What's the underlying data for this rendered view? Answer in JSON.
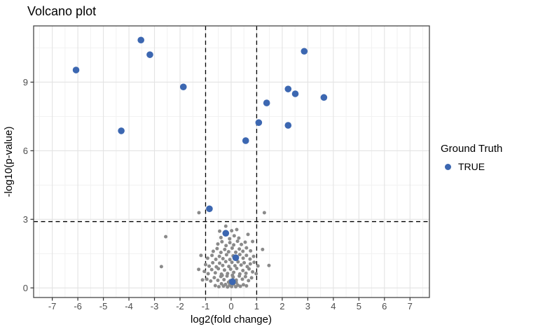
{
  "chart_data": {
    "type": "scatter",
    "title": "Volcano plot",
    "xlabel": "log2(fold change)",
    "ylabel": "-log10(p-value)",
    "xlim": [
      -7.73,
      7.76
    ],
    "ylim": [
      -0.42,
      11.46
    ],
    "x_ticks": [
      -7,
      -6,
      -5,
      -4,
      -3,
      -2,
      -1,
      0,
      1,
      2,
      3,
      4,
      5,
      6,
      7
    ],
    "y_ticks": [
      0,
      3,
      6,
      9
    ],
    "x_minor_ticks": [
      -7.5,
      -6.5,
      -5.5,
      -4.5,
      -3.5,
      -2.5,
      -1.5,
      -0.5,
      0.5,
      1.5,
      2.5,
      3.5,
      4.5,
      5.5,
      6.5,
      7.5
    ],
    "y_minor_ticks": [
      1.5,
      4.5,
      7.5,
      10.5
    ],
    "grid": {
      "major": true,
      "minor": true
    },
    "legend": {
      "position": "right",
      "title": "Ground Truth",
      "items": [
        {
          "label": "TRUE",
          "color": "#3c67b1"
        }
      ]
    },
    "thresholds": {
      "style": "dashed",
      "color": "#000000",
      "vertical_x": [
        -1,
        1
      ],
      "horizontal_y": 2.9
    },
    "series": [
      {
        "name": "background",
        "color": "#8a8a8a",
        "point_radius": 2.5,
        "points": [
          [
            -0.62,
            0.1
          ],
          [
            -0.48,
            0.05
          ],
          [
            -0.38,
            0.18
          ],
          [
            -0.3,
            0.08
          ],
          [
            -0.22,
            0.15
          ],
          [
            -0.14,
            0.04
          ],
          [
            -0.06,
            0.12
          ],
          [
            0.02,
            0.06
          ],
          [
            0.1,
            0.16
          ],
          [
            0.18,
            0.05
          ],
          [
            0.26,
            0.12
          ],
          [
            0.36,
            0.07
          ],
          [
            0.48,
            0.14
          ],
          [
            0.6,
            0.09
          ],
          [
            0.2,
            0.24
          ],
          [
            -0.1,
            0.25
          ],
          [
            -0.95,
            0.38
          ],
          [
            -0.8,
            0.3
          ],
          [
            -0.66,
            0.45
          ],
          [
            -0.52,
            0.33
          ],
          [
            -0.4,
            0.5
          ],
          [
            -0.28,
            0.36
          ],
          [
            -0.16,
            0.52
          ],
          [
            -0.04,
            0.31
          ],
          [
            0.08,
            0.47
          ],
          [
            0.2,
            0.34
          ],
          [
            0.32,
            0.52
          ],
          [
            0.44,
            0.38
          ],
          [
            0.56,
            0.49
          ],
          [
            0.68,
            0.32
          ],
          [
            0.8,
            0.44
          ],
          [
            -1.12,
            0.35
          ],
          [
            0.05,
            0.55
          ],
          [
            -0.35,
            0.55
          ],
          [
            -1.05,
            0.72
          ],
          [
            -0.9,
            0.62
          ],
          [
            -0.76,
            0.8
          ],
          [
            -0.62,
            0.66
          ],
          [
            -0.5,
            0.84
          ],
          [
            -0.38,
            0.6
          ],
          [
            -0.26,
            0.78
          ],
          [
            -0.14,
            0.63
          ],
          [
            -0.02,
            0.82
          ],
          [
            0.1,
            0.68
          ],
          [
            0.22,
            0.85
          ],
          [
            0.34,
            0.61
          ],
          [
            0.46,
            0.76
          ],
          [
            0.58,
            0.64
          ],
          [
            0.7,
            0.83
          ],
          [
            0.84,
            0.7
          ],
          [
            0.98,
            0.62
          ],
          [
            -1.27,
            0.81
          ],
          [
            -1.0,
            1.02
          ],
          [
            -0.86,
            0.95
          ],
          [
            -0.72,
            1.1
          ],
          [
            -0.58,
            0.92
          ],
          [
            -0.45,
            1.08
          ],
          [
            -0.33,
            0.98
          ],
          [
            -0.21,
            1.15
          ],
          [
            -0.09,
            0.94
          ],
          [
            0.03,
            1.12
          ],
          [
            0.15,
            0.97
          ],
          [
            0.27,
            1.14
          ],
          [
            0.39,
            1.0
          ],
          [
            0.51,
            1.1
          ],
          [
            0.63,
            0.93
          ],
          [
            0.75,
            1.05
          ],
          [
            0.9,
            1.12
          ],
          [
            1.05,
            0.96
          ],
          [
            -0.92,
            1.3
          ],
          [
            -0.75,
            1.42
          ],
          [
            -0.6,
            1.25
          ],
          [
            -0.46,
            1.38
          ],
          [
            -0.32,
            1.28
          ],
          [
            -0.18,
            1.45
          ],
          [
            -0.05,
            1.24
          ],
          [
            0.08,
            1.4
          ],
          [
            0.21,
            1.27
          ],
          [
            0.34,
            1.46
          ],
          [
            0.47,
            1.3
          ],
          [
            0.6,
            1.42
          ],
          [
            0.74,
            1.26
          ],
          [
            0.88,
            1.38
          ],
          [
            -1.18,
            1.42
          ],
          [
            -0.7,
            1.6
          ],
          [
            -0.55,
            1.72
          ],
          [
            -0.4,
            1.55
          ],
          [
            -0.25,
            1.68
          ],
          [
            -0.1,
            1.58
          ],
          [
            0.04,
            1.74
          ],
          [
            0.18,
            1.56
          ],
          [
            0.32,
            1.7
          ],
          [
            0.46,
            1.6
          ],
          [
            0.6,
            1.75
          ],
          [
            0.76,
            1.62
          ],
          [
            1.23,
            1.68
          ],
          [
            -0.52,
            1.92
          ],
          [
            -0.36,
            2.02
          ],
          [
            -0.2,
            1.85
          ],
          [
            -0.05,
            1.98
          ],
          [
            0.1,
            1.88
          ],
          [
            0.25,
            2.04
          ],
          [
            0.4,
            1.9
          ],
          [
            0.55,
            2.0
          ],
          [
            0.84,
            2.03
          ],
          [
            -0.4,
            2.2
          ],
          [
            -0.22,
            2.32
          ],
          [
            -0.06,
            2.15
          ],
          [
            0.12,
            2.28
          ],
          [
            0.3,
            2.18
          ],
          [
            0.66,
            2.34
          ],
          [
            -2.56,
            2.24
          ],
          [
            -0.21,
            2.7
          ],
          [
            0.02,
            2.5
          ],
          [
            0.22,
            2.55
          ],
          [
            -0.45,
            2.48
          ],
          [
            -2.73,
            0.93
          ],
          [
            -1.26,
            3.29
          ],
          [
            1.3,
            3.29
          ],
          [
            1.48,
            0.98
          ]
        ]
      },
      {
        "name": "TRUE",
        "color": "#3c67b1",
        "point_radius": 4.8,
        "points": [
          [
            -6.07,
            9.53
          ],
          [
            -4.3,
            6.87
          ],
          [
            -3.53,
            10.84
          ],
          [
            -3.18,
            10.2
          ],
          [
            -1.87,
            8.79
          ],
          [
            -0.85,
            3.46
          ],
          [
            -0.21,
            2.39
          ],
          [
            0.05,
            0.27
          ],
          [
            0.18,
            1.32
          ],
          [
            0.57,
            6.44
          ],
          [
            1.08,
            7.23
          ],
          [
            1.39,
            8.09
          ],
          [
            2.23,
            8.7
          ],
          [
            2.23,
            7.11
          ],
          [
            2.51,
            8.49
          ],
          [
            2.86,
            10.35
          ],
          [
            3.63,
            8.33
          ]
        ]
      }
    ]
  }
}
